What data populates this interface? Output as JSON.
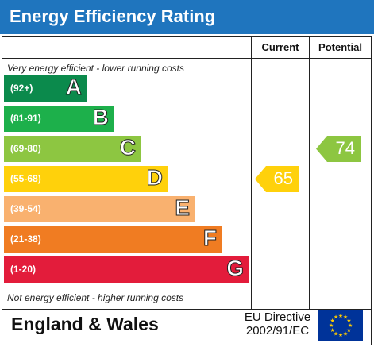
{
  "title": "Energy Efficiency Rating",
  "columns": {
    "current": "Current",
    "potential": "Potential"
  },
  "top_note": "Very energy efficient - lower running costs",
  "bottom_note": "Not energy efficient - higher running costs",
  "footer": {
    "region": "England & Wales",
    "directive_line1": "EU Directive",
    "directive_line2": "2002/91/EC"
  },
  "icons": {
    "flag": "eu-flag-icon"
  },
  "colors": {
    "title_bar": "#1f75be",
    "flag": "#003399",
    "stars": "#ffcc00"
  },
  "chart_data": {
    "type": "bar",
    "categories": [
      "A",
      "B",
      "C",
      "D",
      "E",
      "F",
      "G"
    ],
    "ranges": [
      "(92+)",
      "(81-91)",
      "(69-80)",
      "(55-68)",
      "(39-54)",
      "(21-38)",
      "(1-20)"
    ],
    "colors": [
      "#0b8a4c",
      "#1db04b",
      "#8dc641",
      "#ffd10b",
      "#f9b16f",
      "#f07c22",
      "#e31c3b"
    ],
    "current": {
      "value": 65,
      "band": "D",
      "color": "#ffd10b"
    },
    "potential": {
      "value": 74,
      "band": "C",
      "color": "#8dc641"
    }
  }
}
